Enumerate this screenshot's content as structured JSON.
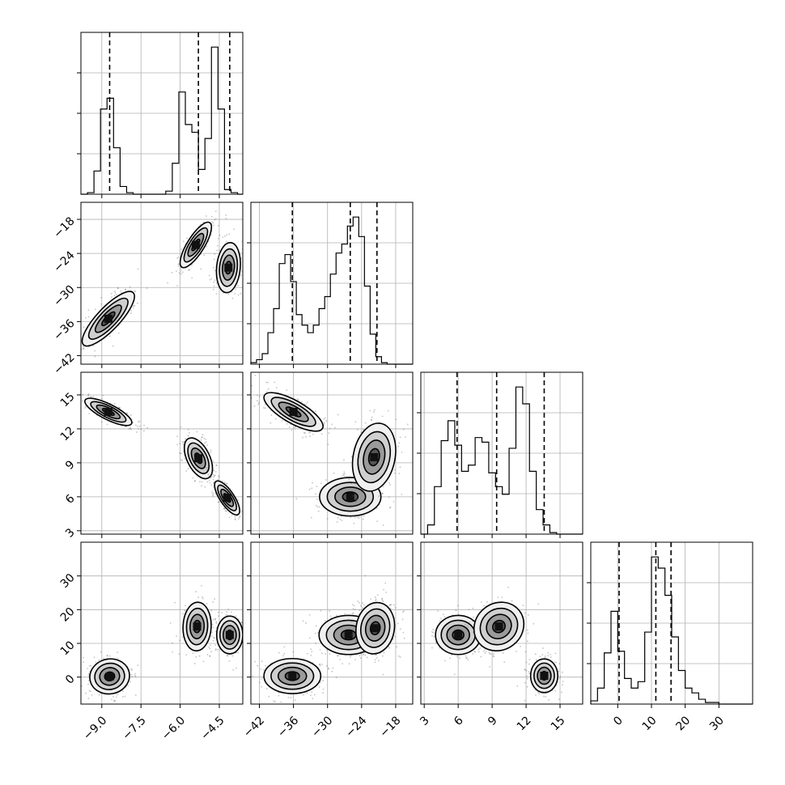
{
  "chart_data": {
    "type": "corner",
    "title": "",
    "grid": true,
    "parameters": [
      {
        "index": 0,
        "range": [
          -9.8,
          -3.6
        ],
        "ticks": [
          -9.0,
          -7.5,
          -6.0,
          -4.5
        ],
        "tick_labels": [
          "−9.0",
          "−7.5",
          "−6.0",
          "−4.5"
        ],
        "hist": {
          "edges": [
            -9.8,
            -9.55,
            -9.3,
            -9.05,
            -8.8,
            -8.55,
            -8.3,
            -8.05,
            -7.8,
            -7.55,
            -7.3,
            -7.05,
            -6.8,
            -6.55,
            -6.3,
            -6.05,
            -5.8,
            -5.55,
            -5.3,
            -5.05,
            -4.8,
            -4.55,
            -4.3,
            -4.05,
            -3.8,
            -3.6
          ],
          "counts": [
            0,
            0.01,
            0.15,
            0.55,
            0.62,
            0.3,
            0.05,
            0.01,
            0,
            0,
            0,
            0,
            0,
            0.02,
            0.2,
            0.66,
            0.45,
            0.4,
            0.16,
            0.36,
            0.95,
            0.55,
            0.03,
            0.01,
            0
          ],
          "quantiles": [
            -8.7,
            -5.3,
            -4.1
          ]
        }
      },
      {
        "index": 1,
        "range": [
          -43.5,
          -15.0
        ],
        "ticks": [
          -42,
          -36,
          -30,
          -24,
          -18
        ],
        "tick_labels": [
          "−42",
          "−36",
          "−30",
          "−24",
          "−18"
        ],
        "hist": {
          "edges": [
            -43.5,
            -42.5,
            -41.5,
            -40.5,
            -39.5,
            -38.5,
            -37.5,
            -36.5,
            -35.5,
            -34.5,
            -33.5,
            -32.5,
            -31.5,
            -30.5,
            -29.5,
            -28.5,
            -27.5,
            -26.5,
            -25.5,
            -24.5,
            -23.5,
            -22.5,
            -21.5,
            -20.5,
            -19.5,
            -18.5,
            -17.5,
            -16.5,
            -15.0
          ],
          "counts": [
            0.01,
            0.03,
            0.07,
            0.21,
            0.37,
            0.67,
            0.73,
            0.55,
            0.33,
            0.26,
            0.21,
            0.26,
            0.37,
            0.45,
            0.6,
            0.74,
            0.8,
            0.92,
            0.98,
            0.85,
            0.52,
            0.2,
            0.05,
            0.01,
            0,
            0,
            0,
            0
          ],
          "quantiles": [
            -36.2,
            -26.0,
            -21.3
          ]
        }
      },
      {
        "index": 2,
        "range": [
          2.7,
          17.0
        ],
        "ticks": [
          3,
          6,
          9,
          12,
          15
        ],
        "tick_labels": [
          "3",
          "6",
          "9",
          "12",
          "15"
        ],
        "hist": {
          "edges": [
            2.7,
            3.3,
            3.9,
            4.5,
            5.1,
            5.7,
            6.3,
            6.9,
            7.5,
            8.1,
            8.7,
            9.3,
            9.9,
            10.5,
            11.1,
            11.7,
            12.3,
            12.9,
            13.5,
            14.1,
            14.7,
            15.3,
            15.9,
            16.5,
            17.0
          ],
          "counts": [
            0,
            0.06,
            0.31,
            0.61,
            0.74,
            0.58,
            0.41,
            0.45,
            0.63,
            0.6,
            0.4,
            0.31,
            0.26,
            0.56,
            0.96,
            0.85,
            0.41,
            0.16,
            0.06,
            0.01,
            0,
            0,
            0,
            0
          ],
          "quantiles": [
            5.9,
            9.4,
            13.6
          ]
        }
      },
      {
        "index": 3,
        "range": [
          -8.0,
          40.0
        ],
        "ticks": [
          0,
          10,
          20,
          30
        ],
        "tick_labels": [
          "0",
          "10",
          "20",
          "30"
        ],
        "hist": {
          "edges": [
            -8,
            -6,
            -4,
            -2,
            0,
            2,
            4,
            6,
            8,
            10,
            12,
            14,
            16,
            18,
            20,
            22,
            24,
            26,
            28,
            30,
            32,
            34,
            36,
            38,
            40
          ],
          "counts": [
            0.02,
            0.1,
            0.32,
            0.58,
            0.33,
            0.16,
            0.1,
            0.14,
            0.45,
            0.92,
            0.85,
            0.68,
            0.42,
            0.21,
            0.1,
            0.07,
            0.03,
            0.01,
            0.01,
            0,
            0,
            0,
            0,
            0
          ],
          "quantiles": [
            0.4,
            11.3,
            15.8
          ]
        }
      }
    ],
    "pairs": [
      {
        "x": 0,
        "y": 1,
        "blobs": [
          {
            "cx": -8.75,
            "cy": -35.5,
            "sx": 0.5,
            "sy": 2.4,
            "rho": 0.82,
            "weight": 1.0
          },
          {
            "cx": -5.4,
            "cy": -22.5,
            "sx": 0.3,
            "sy": 2.0,
            "rho": 0.78,
            "weight": 1.05
          },
          {
            "cx": -4.15,
            "cy": -26.5,
            "sx": 0.23,
            "sy": 2.2,
            "rho": 0.15,
            "weight": 1.0
          }
        ]
      },
      {
        "x": 0,
        "y": 2,
        "blobs": [
          {
            "cx": -8.75,
            "cy": 13.5,
            "sx": 0.45,
            "sy": 0.6,
            "rho": -0.78,
            "weight": 1.0
          },
          {
            "cx": -5.3,
            "cy": 9.4,
            "sx": 0.27,
            "sy": 0.9,
            "rho": -0.5,
            "weight": 1.0
          },
          {
            "cx": -4.2,
            "cy": 5.9,
            "sx": 0.24,
            "sy": 0.75,
            "rho": -0.75,
            "weight": 1.0
          }
        ]
      },
      {
        "x": 0,
        "y": 3,
        "blobs": [
          {
            "cx": -8.7,
            "cy": 0.2,
            "sx": 0.38,
            "sy": 2.6,
            "rho": 0.05,
            "weight": 1.0
          },
          {
            "cx": -5.35,
            "cy": 15.0,
            "sx": 0.27,
            "sy": 3.6,
            "rho": 0.05,
            "weight": 1.0
          },
          {
            "cx": -4.1,
            "cy": 12.5,
            "sx": 0.25,
            "sy": 2.8,
            "rho": 0.0,
            "weight": 1.0
          }
        ]
      },
      {
        "x": 1,
        "y": 2,
        "blobs": [
          {
            "cx": -36.0,
            "cy": 13.5,
            "sx": 2.6,
            "sy": 0.85,
            "rho": -0.75,
            "weight": 1.0
          },
          {
            "cx": -26.0,
            "cy": 6.0,
            "sx": 2.7,
            "sy": 0.85,
            "rho": 0.0,
            "weight": 1.0
          },
          {
            "cx": -21.8,
            "cy": 9.5,
            "sx": 1.9,
            "sy": 1.5,
            "rho": 0.2,
            "weight": 1.0
          }
        ]
      },
      {
        "x": 1,
        "y": 3,
        "blobs": [
          {
            "cx": -36.2,
            "cy": 0.3,
            "sx": 2.5,
            "sy": 2.6,
            "rho": 0.0,
            "weight": 1.0
          },
          {
            "cx": -26.3,
            "cy": 12.5,
            "sx": 2.6,
            "sy": 2.9,
            "rho": 0.0,
            "weight": 1.0
          },
          {
            "cx": -21.6,
            "cy": 14.5,
            "sx": 1.7,
            "sy": 3.8,
            "rho": 0.1,
            "weight": 1.0
          }
        ]
      },
      {
        "x": 2,
        "y": 3,
        "blobs": [
          {
            "cx": 6.0,
            "cy": 12.5,
            "sx": 1.0,
            "sy": 2.9,
            "rho": 0.0,
            "weight": 1.0
          },
          {
            "cx": 9.6,
            "cy": 15.0,
            "sx": 1.1,
            "sy": 3.6,
            "rho": 0.1,
            "weight": 1.0
          },
          {
            "cx": 13.6,
            "cy": 0.4,
            "sx": 0.6,
            "sy": 2.5,
            "rho": 0.0,
            "weight": 1.0
          }
        ]
      }
    ],
    "contour_levels_sigma": [
      0.5,
      1.0,
      1.5,
      2.0
    ]
  }
}
